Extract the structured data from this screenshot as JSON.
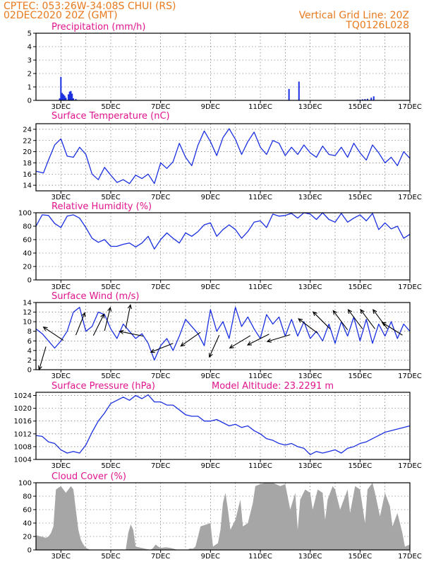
{
  "header": {
    "line1": "CPTEC:   053:26W-34:08S   CHUI (RS)",
    "line2": "02DEC2020 20Z (GMT)",
    "vgrid_label": "Vertical Grid Line: 20Z",
    "run_code": "TQ0126L028"
  },
  "x_axis": {
    "tick_labels": [
      "3DEC",
      "5DEC",
      "7DEC",
      "9DEC",
      "11DEC",
      "13DEC",
      "15DEC",
      "17DEC"
    ]
  },
  "colors": {
    "line": "#1a2fe0",
    "cloud_fill": "#a6a6a6",
    "title": "#e0148c",
    "header": "#e87a1e"
  },
  "chart_data": [
    {
      "type": "bar",
      "title": "Precipitation (mm/h)",
      "x_range": [
        2.0,
        17.0
      ],
      "ylim": [
        0,
        5
      ],
      "yticks": [
        0,
        1,
        2,
        3,
        4,
        5
      ],
      "grid": true,
      "x": [
        2.95,
        3.0,
        3.05,
        3.1,
        3.15,
        3.2,
        3.3,
        3.35,
        3.4,
        3.45,
        3.5,
        3.6,
        12.15,
        12.55,
        14.9,
        15.0,
        15.1,
        15.2,
        15.3,
        15.45,
        15.55
      ],
      "values": [
        0.15,
        1.75,
        0.55,
        0.45,
        0.35,
        0.2,
        0.45,
        0.65,
        0.7,
        0.5,
        0.15,
        0.1,
        0.85,
        1.4,
        0.06,
        0.06,
        0.08,
        0.1,
        0.12,
        0.2,
        0.3
      ]
    },
    {
      "type": "line",
      "title": "Surface Temperature (nC)",
      "ylim": [
        13,
        25
      ],
      "yticks": [
        14,
        16,
        18,
        20,
        22,
        24
      ],
      "grid": true,
      "x": [
        2.0,
        2.3,
        2.5,
        2.75,
        3.0,
        3.25,
        3.5,
        3.75,
        4.0,
        4.25,
        4.5,
        4.75,
        5.0,
        5.25,
        5.5,
        5.75,
        6.0,
        6.25,
        6.5,
        6.75,
        7.0,
        7.25,
        7.5,
        7.75,
        8.0,
        8.25,
        8.5,
        8.75,
        9.0,
        9.25,
        9.5,
        9.75,
        10.0,
        10.25,
        10.5,
        10.75,
        11.0,
        11.25,
        11.5,
        11.75,
        12.0,
        12.25,
        12.5,
        12.75,
        13.0,
        13.25,
        13.5,
        13.75,
        14.0,
        14.25,
        14.5,
        14.75,
        15.0,
        15.25,
        15.5,
        15.75,
        16.0,
        16.25,
        16.5,
        16.75,
        17.0
      ],
      "values": [
        16.5,
        16.2,
        18.5,
        21.2,
        22.3,
        19.2,
        19.0,
        20.8,
        19.5,
        16.0,
        15.0,
        17.2,
        15.8,
        14.5,
        15.0,
        14.3,
        15.8,
        15.2,
        16.0,
        14.3,
        18.0,
        17.0,
        18.2,
        21.5,
        19.0,
        17.5,
        21.2,
        23.7,
        21.8,
        19.3,
        22.5,
        24.1,
        22.2,
        19.5,
        21.8,
        23.5,
        20.8,
        19.5,
        22.0,
        21.5,
        19.3,
        20.8,
        19.5,
        21.2,
        19.8,
        19.0,
        21.0,
        19.5,
        19.3,
        20.8,
        19.0,
        21.5,
        19.8,
        18.5,
        21.2,
        19.8,
        18.0,
        19.0,
        17.5,
        20.0,
        18.8
      ]
    },
    {
      "type": "line",
      "title": "Relative Humidity (%)",
      "ylim": [
        0,
        100
      ],
      "yticks": [
        0,
        20,
        40,
        60,
        80,
        100
      ],
      "grid": true,
      "x": [
        2.0,
        2.25,
        2.5,
        2.75,
        3.0,
        3.25,
        3.5,
        3.75,
        4.0,
        4.25,
        4.5,
        4.75,
        5.0,
        5.25,
        5.5,
        5.75,
        6.0,
        6.25,
        6.5,
        6.75,
        7.0,
        7.25,
        7.5,
        7.75,
        8.0,
        8.25,
        8.5,
        8.75,
        9.0,
        9.25,
        9.5,
        9.75,
        10.0,
        10.25,
        10.5,
        10.75,
        11.0,
        11.25,
        11.5,
        11.75,
        12.0,
        12.25,
        12.5,
        12.75,
        13.0,
        13.25,
        13.5,
        13.75,
        14.0,
        14.25,
        14.5,
        14.75,
        15.0,
        15.25,
        15.5,
        15.75,
        16.0,
        16.25,
        16.5,
        16.75,
        17.0
      ],
      "values": [
        80,
        97,
        96,
        84,
        78,
        95,
        97,
        92,
        78,
        62,
        56,
        60,
        50,
        50,
        53,
        55,
        49,
        55,
        65,
        46,
        60,
        70,
        62,
        55,
        70,
        65,
        72,
        82,
        85,
        65,
        75,
        82,
        75,
        62,
        72,
        86,
        88,
        78,
        98,
        95,
        96,
        99,
        92,
        100,
        98,
        90,
        100,
        90,
        86,
        99,
        86,
        92,
        97,
        88,
        99,
        75,
        85,
        76,
        80,
        62,
        68
      ]
    },
    {
      "type": "line",
      "title": "Surface Wind (m/s)",
      "ylim": [
        0,
        14
      ],
      "yticks": [
        0,
        2,
        4,
        6,
        8,
        10,
        12,
        14
      ],
      "grid": true,
      "x": [
        2.0,
        2.25,
        2.5,
        2.75,
        3.0,
        3.25,
        3.5,
        3.75,
        4.0,
        4.25,
        4.5,
        4.75,
        5.0,
        5.25,
        5.5,
        5.75,
        6.0,
        6.25,
        6.5,
        6.75,
        7.0,
        7.25,
        7.5,
        7.75,
        8.0,
        8.25,
        8.5,
        8.75,
        9.0,
        9.25,
        9.5,
        9.75,
        10.0,
        10.25,
        10.5,
        10.75,
        11.0,
        11.25,
        11.5,
        11.75,
        12.0,
        12.25,
        12.5,
        12.75,
        13.0,
        13.25,
        13.5,
        13.75,
        14.0,
        14.25,
        14.5,
        14.75,
        15.0,
        15.25,
        15.5,
        15.75,
        16.0,
        16.25,
        16.5,
        16.75,
        17.0
      ],
      "values": [
        8.5,
        7.5,
        6.0,
        4.5,
        6.0,
        8.0,
        12.0,
        13.0,
        8.0,
        9.0,
        12.0,
        11.5,
        8.5,
        6.5,
        9.5,
        8.0,
        6.5,
        7.5,
        5.5,
        2.0,
        5.0,
        6.5,
        4.0,
        7.0,
        10.5,
        9.0,
        7.5,
        5.0,
        12.5,
        8.0,
        10.0,
        6.5,
        13.0,
        9.0,
        11.0,
        8.5,
        6.5,
        11.5,
        9.5,
        11.0,
        7.0,
        10.5,
        7.0,
        10.0,
        6.5,
        8.0,
        6.0,
        9.5,
        5.5,
        10.0,
        7.0,
        11.0,
        6.0,
        10.5,
        5.5,
        9.5,
        7.0,
        10.0,
        6.5,
        9.5,
        8.0
      ],
      "arrows": [
        {
          "x": 2.4,
          "y": 4.8,
          "u": -0.3,
          "v": -1.0
        },
        {
          "x": 3.1,
          "y": 6.1,
          "u": -0.9,
          "v": 0.6
        },
        {
          "x": 3.6,
          "y": 7.2,
          "u": 0.4,
          "v": 1.0
        },
        {
          "x": 4.3,
          "y": 7.1,
          "u": 0.5,
          "v": 1.0
        },
        {
          "x": 4.75,
          "y": 8.1,
          "u": 0.25,
          "v": 1.0
        },
        {
          "x": 5.6,
          "y": 8.6,
          "u": 0.2,
          "v": 1.0
        },
        {
          "x": 6.3,
          "y": 7.0,
          "u": -1.0,
          "v": 0.2
        },
        {
          "x": 7.5,
          "y": 5.5,
          "u": -1.0,
          "v": -0.4
        },
        {
          "x": 8.6,
          "y": 7.8,
          "u": -1.0,
          "v": -0.7
        },
        {
          "x": 9.35,
          "y": 7.2,
          "u": -0.45,
          "v": -1.0
        },
        {
          "x": 10.6,
          "y": 7.1,
          "u": -1.0,
          "v": -0.6
        },
        {
          "x": 11.35,
          "y": 7.4,
          "u": -1.0,
          "v": -0.5
        },
        {
          "x": 12.2,
          "y": 7.3,
          "u": -1.0,
          "v": -0.3
        },
        {
          "x": 13.3,
          "y": 7.6,
          "u": -0.8,
          "v": 0.6
        },
        {
          "x": 13.8,
          "y": 8.5,
          "u": -0.7,
          "v": 0.7
        },
        {
          "x": 14.5,
          "y": 8.3,
          "u": -0.6,
          "v": 0.8
        },
        {
          "x": 15.1,
          "y": 8.5,
          "u": -0.6,
          "v": 0.8
        },
        {
          "x": 15.6,
          "y": 8.5,
          "u": -0.6,
          "v": 0.8
        },
        {
          "x": 16.1,
          "y": 8.5,
          "u": -0.6,
          "v": 0.8
        },
        {
          "x": 16.7,
          "y": 7.2,
          "u": -0.8,
          "v": 0.5
        }
      ]
    },
    {
      "type": "line",
      "title": "Surface Pressure (hPa)",
      "annotation": "Model Altitude: 23.2291 m",
      "ylim": [
        1004,
        1025
      ],
      "yticks": [
        1004,
        1008,
        1012,
        1016,
        1020,
        1024
      ],
      "grid": true,
      "x": [
        2.0,
        2.25,
        2.5,
        2.75,
        3.0,
        3.25,
        3.5,
        3.75,
        4.0,
        4.25,
        4.5,
        4.75,
        5.0,
        5.25,
        5.5,
        5.75,
        6.0,
        6.25,
        6.5,
        6.75,
        7.0,
        7.25,
        7.5,
        7.75,
        8.0,
        8.25,
        8.5,
        8.75,
        9.0,
        9.25,
        9.5,
        9.75,
        10.0,
        10.25,
        10.5,
        10.75,
        11.0,
        11.25,
        11.5,
        11.75,
        12.0,
        12.25,
        12.5,
        12.75,
        13.0,
        13.25,
        13.5,
        13.75,
        14.0,
        14.25,
        14.5,
        14.75,
        15.0,
        15.25,
        15.5,
        15.75,
        16.0,
        16.25,
        16.5,
        16.75,
        17.0
      ],
      "values": [
        1011.5,
        1011.2,
        1009.5,
        1009.0,
        1007.0,
        1006.0,
        1006.5,
        1006.0,
        1008.5,
        1012.5,
        1016.0,
        1018.5,
        1021.5,
        1022.5,
        1023.5,
        1022.5,
        1024.0,
        1023.0,
        1024.2,
        1022.0,
        1022.0,
        1021.0,
        1021.0,
        1019.5,
        1018.0,
        1017.5,
        1017.5,
        1016.0,
        1016.0,
        1016.5,
        1015.5,
        1014.5,
        1015.0,
        1014.0,
        1014.5,
        1013.0,
        1012.0,
        1010.5,
        1010.0,
        1009.0,
        1008.5,
        1009.0,
        1008.0,
        1007.5,
        1005.5,
        1006.5,
        1006.0,
        1006.5,
        1007.0,
        1006.0,
        1007.5,
        1008.0,
        1009.0,
        1009.5,
        1010.5,
        1011.5,
        1012.5,
        1013.0,
        1013.5,
        1014.0,
        1014.5
      ]
    },
    {
      "type": "area",
      "title": "Cloud Cover (%)",
      "ylim": [
        0,
        100
      ],
      "yticks": [
        0,
        20,
        40,
        60,
        80,
        100
      ],
      "grid": true,
      "x": [
        2.0,
        2.2,
        2.4,
        2.5,
        2.6,
        2.7,
        2.8,
        3.0,
        3.2,
        3.4,
        3.5,
        3.6,
        3.7,
        3.8,
        3.9,
        4.0,
        4.2,
        5.6,
        5.7,
        5.8,
        5.9,
        6.0,
        6.6,
        6.7,
        6.8,
        6.9,
        7.0,
        7.2,
        7.4,
        7.7,
        8.1,
        8.15,
        8.3,
        8.4,
        8.6,
        9.0,
        9.1,
        9.3,
        9.4,
        9.5,
        9.6,
        9.7,
        9.8,
        10.0,
        10.2,
        10.3,
        10.5,
        10.7,
        10.8,
        11.0,
        11.2,
        11.5,
        11.8,
        12.0,
        12.2,
        12.4,
        12.5,
        12.6,
        12.8,
        13.0,
        13.1,
        13.3,
        13.5,
        13.6,
        13.7,
        13.9,
        14.0,
        14.2,
        14.3,
        14.5,
        14.6,
        14.8,
        15.0,
        15.2,
        15.3,
        15.5,
        15.6,
        15.8,
        16.0,
        16.2,
        16.3,
        16.5,
        16.7,
        16.8,
        17.0
      ],
      "values": [
        22,
        20,
        18,
        20,
        25,
        35,
        90,
        95,
        85,
        95,
        90,
        60,
        30,
        15,
        8,
        3,
        0,
        0,
        25,
        38,
        30,
        5,
        0,
        3,
        8,
        5,
        3,
        4,
        3,
        0,
        0,
        2,
        2,
        5,
        35,
        40,
        5,
        10,
        30,
        70,
        85,
        60,
        30,
        45,
        75,
        35,
        40,
        70,
        95,
        98,
        100,
        100,
        95,
        98,
        60,
        85,
        30,
        75,
        90,
        85,
        60,
        90,
        85,
        45,
        75,
        95,
        90,
        60,
        70,
        90,
        55,
        95,
        90,
        40,
        90,
        100,
        85,
        50,
        85,
        65,
        35,
        55,
        25,
        5,
        8
      ]
    }
  ]
}
